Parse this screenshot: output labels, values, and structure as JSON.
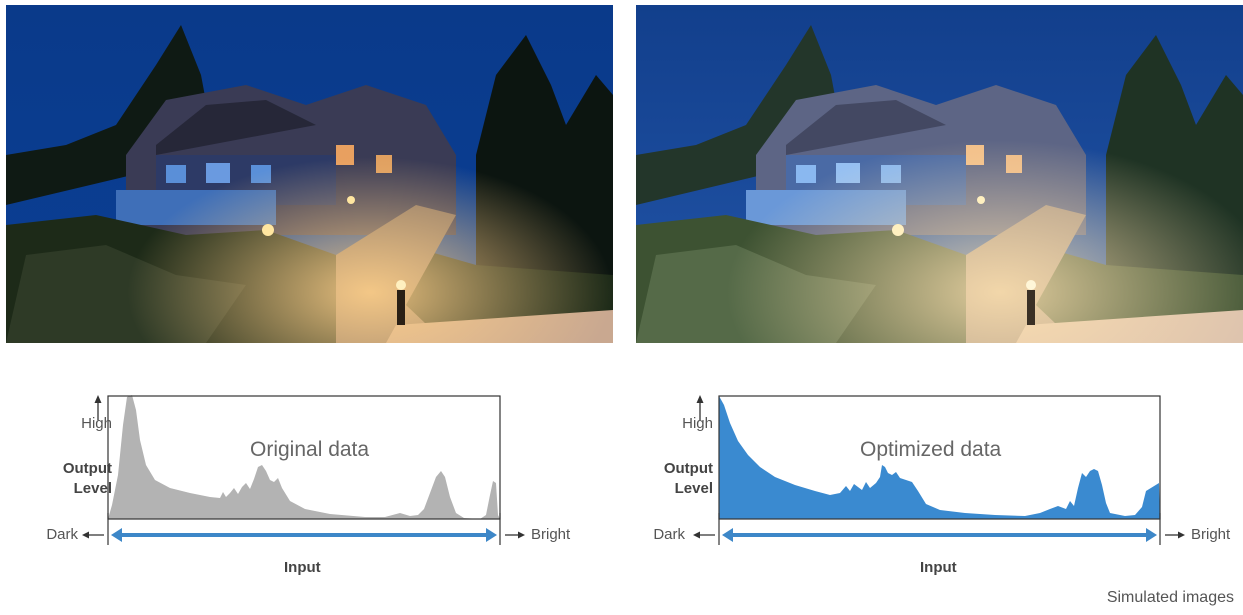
{
  "panels": [
    {
      "id": "left",
      "title": "Original data",
      "high_label": "High",
      "output_label_line1": "Output",
      "output_label_line2": "Level",
      "dark_label": "Dark",
      "bright_label": "Bright",
      "input_label": "Input",
      "fill_color": "#b3b3b3"
    },
    {
      "id": "right",
      "title": "Optimized data",
      "high_label": "High",
      "output_label_line1": "Output",
      "output_label_line2": "Level",
      "dark_label": "Dark",
      "bright_label": "Bright",
      "input_label": "Input",
      "fill_color": "#3a8ad0"
    }
  ],
  "colors": {
    "arrow_blue": "#3d87c8",
    "frame": "#333333"
  },
  "footnote": "Simulated images"
}
